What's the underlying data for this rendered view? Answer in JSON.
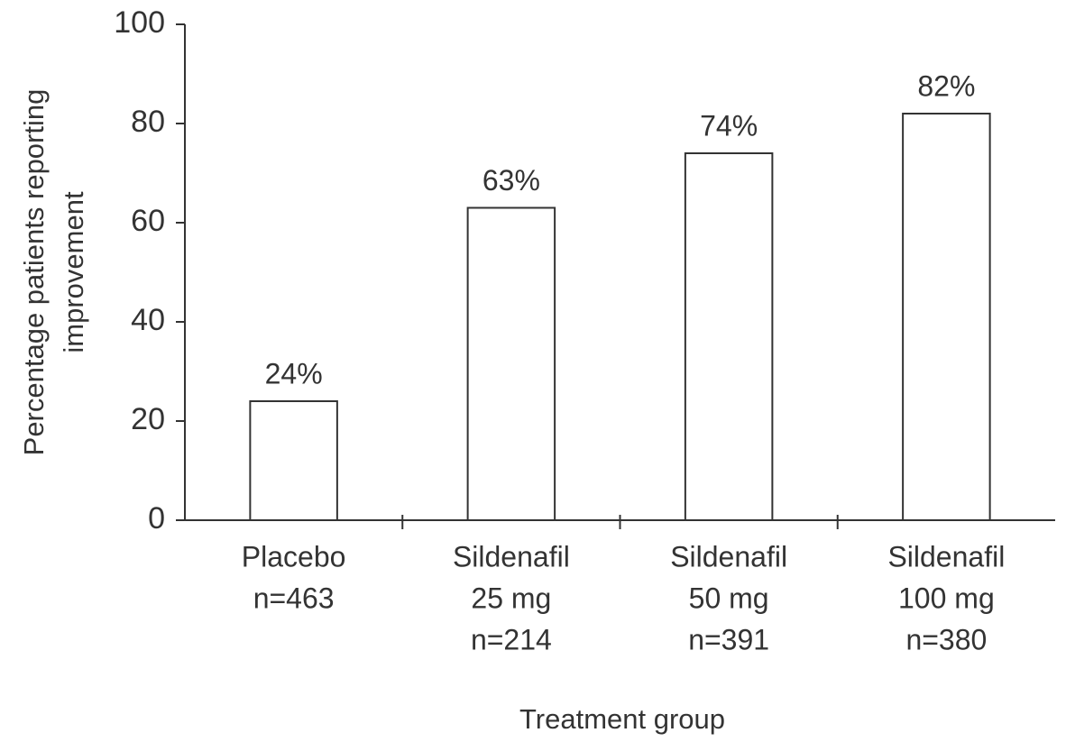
{
  "chart_data": {
    "type": "bar",
    "categories": [
      [
        "Placebo",
        "n=463"
      ],
      [
        "Sildenafil",
        "25 mg",
        "n=214"
      ],
      [
        "Sildenafil",
        "50 mg",
        "n=391"
      ],
      [
        "Sildenafil",
        "100 mg",
        "n=380"
      ]
    ],
    "values": [
      24,
      63,
      74,
      82
    ],
    "value_labels": [
      "24%",
      "63%",
      "74%",
      "82%"
    ],
    "color": "#ffffff",
    "ylim": [
      0,
      100
    ],
    "yticks": [
      0,
      20,
      40,
      60,
      80,
      100
    ],
    "y_label": [
      "Percentage patients reporting",
      "improvement"
    ],
    "x_label": "Treatment group",
    "grid": false
  }
}
